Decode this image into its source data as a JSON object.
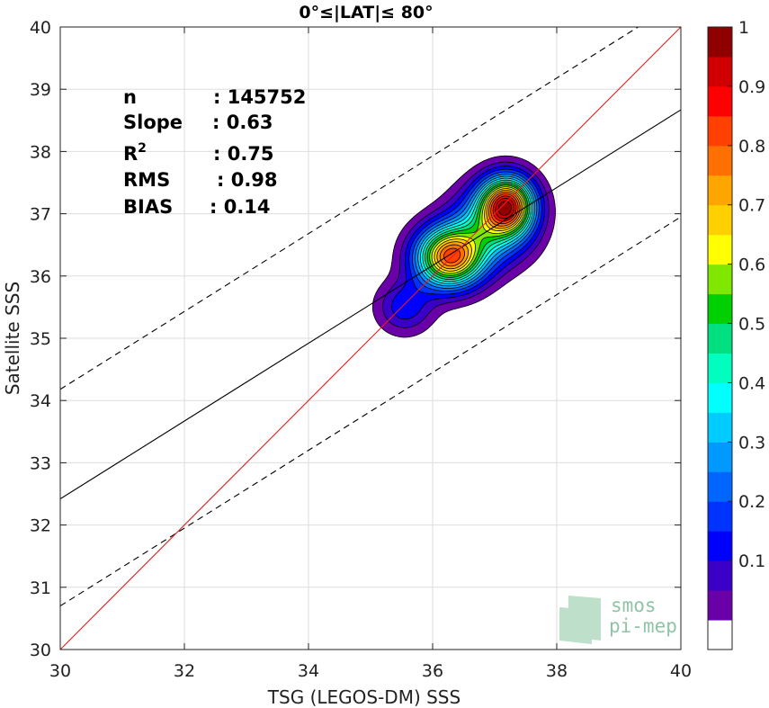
{
  "chart_data": {
    "type": "contour",
    "title": "0°≤|LAT|≤ 80°",
    "xlabel": "TSG (LEGOS-DM) SSS",
    "ylabel": "Satellite SSS",
    "xlim": [
      30,
      40
    ],
    "ylim": [
      30,
      40
    ],
    "x_ticks": [
      "30",
      "32",
      "34",
      "36",
      "38",
      "40"
    ],
    "y_ticks": [
      "30",
      "31",
      "32",
      "33",
      "34",
      "35",
      "36",
      "37",
      "38",
      "39",
      "40"
    ],
    "grid": true,
    "stats": {
      "n_label": "n",
      "n_value": ": 145752",
      "slope_label": "Slope",
      "slope_value": ": 0.63",
      "r2_label": "R",
      "r2_sup": "2",
      "r2_value": ": 0.75",
      "rms_label": "RMS",
      "rms_value": ": 0.98",
      "bias_label": "BIAS",
      "bias_value": ": 0.14"
    },
    "lines": {
      "one_to_one": {
        "color": "#e8201c",
        "x": [
          30,
          40
        ],
        "y": [
          30,
          40
        ]
      },
      "regression": {
        "color": "#000000",
        "x": [
          30,
          40
        ],
        "y": [
          32.42,
          38.67
        ]
      },
      "upper_bound": {
        "color": "#000000",
        "style": "dashed",
        "x": [
          30,
          40
        ],
        "y": [
          34.18,
          40.43
        ]
      },
      "lower_bound": {
        "color": "#000000",
        "style": "dashed",
        "x": [
          30,
          40
        ],
        "y": [
          30.7,
          36.95
        ]
      }
    },
    "density_peaks": [
      {
        "x": 36.27,
        "y": 36.3,
        "sx": 0.38,
        "sy": 0.34,
        "amp": 1.0
      },
      {
        "x": 37.2,
        "y": 37.15,
        "sx": 0.3,
        "sy": 0.32,
        "amp": 0.97
      },
      {
        "x": 36.95,
        "y": 36.8,
        "sx": 0.45,
        "sy": 0.42,
        "amp": 0.45
      },
      {
        "x": 35.55,
        "y": 35.5,
        "sx": 0.32,
        "sy": 0.3,
        "amp": 0.22
      }
    ],
    "colorbar": {
      "ticks": [
        "0.1",
        "0.2",
        "0.3",
        "0.4",
        "0.5",
        "0.6",
        "0.7",
        "0.8",
        "0.9",
        "1"
      ],
      "levels": [
        "#ffffff",
        "#6a00a8",
        "#3a00c8",
        "#0000ff",
        "#0033ff",
        "#0066ff",
        "#0099ff",
        "#00ccff",
        "#00ffff",
        "#00ffbf",
        "#00e080",
        "#00d000",
        "#80e800",
        "#ffff00",
        "#ffd000",
        "#ffa500",
        "#ff7000",
        "#ff4000",
        "#ff0000",
        "#d00000",
        "#900000"
      ]
    }
  },
  "logo": {
    "line1": "smos",
    "line2": "pi-mep"
  }
}
